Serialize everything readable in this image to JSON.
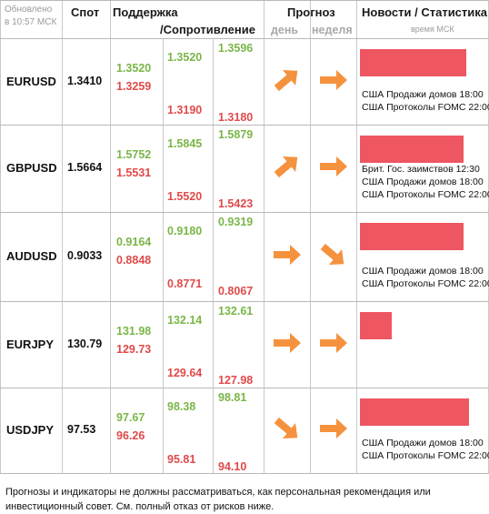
{
  "header": {
    "updated_line1": "Обновлено",
    "updated_line2": "в 10:57 МСК",
    "spot": "Спот",
    "support": "Поддержка",
    "resistance": "/Сопротивление",
    "forecast": "Прогноз",
    "day": "день",
    "week": "неделя",
    "news": "Новости / Статистика",
    "tz": "время МСК"
  },
  "colors": {
    "support": "#7ab648",
    "resistance": "#e04a4a",
    "arrow": "#f5923e",
    "news_bar": "#ee5662"
  },
  "rows": [
    {
      "pair": "EURUSD",
      "spot": "1.3410",
      "c1": [
        "1.3520",
        "1.3259"
      ],
      "c2": [
        "1.3520",
        "1.3190"
      ],
      "c3": [
        "1.3596",
        "1.3180"
      ],
      "day": "up-right-icon",
      "week": "right-icon",
      "news_bar": 0.9,
      "news": [
        "США Продажи домов 18:00",
        "США Протоколы FOMC 22:00"
      ]
    },
    {
      "pair": "GBPUSD",
      "spot": "1.5664",
      "c1": [
        "1.5752",
        "1.5531"
      ],
      "c2": [
        "1.5845",
        "1.5520"
      ],
      "c3": [
        "1.5879",
        "1.5423"
      ],
      "day": "up-right-icon",
      "week": "right-icon",
      "news_bar": 0.88,
      "news": [
        "Брит. Гос. заимствов 12:30",
        "США Продажи домов 18:00",
        "США Протоколы FOMC 22:00"
      ]
    },
    {
      "pair": "AUDUSD",
      "spot": "0.9033",
      "c1": [
        "0.9164",
        "0.8848"
      ],
      "c2": [
        "0.9180",
        "0.8771"
      ],
      "c3": [
        "0.9319",
        "0.8067"
      ],
      "day": "right-icon",
      "week": "down-right-icon",
      "news_bar": 0.88,
      "news": [
        "США Продажи домов 18:00",
        "США Протоколы FOMC 22:00"
      ]
    },
    {
      "pair": "EURJPY",
      "spot": "130.79",
      "c1": [
        "131.98",
        "129.73"
      ],
      "c2": [
        "132.14",
        "129.64"
      ],
      "c3": [
        "132.61",
        "127.98"
      ],
      "day": "right-icon",
      "week": "right-icon",
      "news_bar": 0.27,
      "news": []
    },
    {
      "pair": "USDJPY",
      "spot": "97.53",
      "c1": [
        "97.67",
        "96.26"
      ],
      "c2": [
        "98.38",
        "95.81"
      ],
      "c3": [
        "98.81",
        "94.10"
      ],
      "day": "down-right-icon",
      "week": "right-icon",
      "news_bar": 0.92,
      "news": [
        "США Продажи домов 18:00",
        "США Протоколы FOMC 22:00"
      ]
    }
  ],
  "footer": "Прогнозы и индикаторы не должны рассматриваться, как персональная рекомендация или инвестиционный совет. См. полный отказ от рисков ниже."
}
